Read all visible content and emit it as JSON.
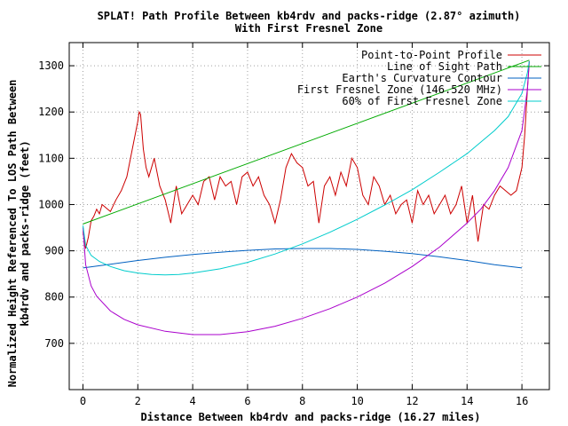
{
  "chart_data": {
    "type": "line",
    "title": "SPLAT! Path Profile Between kb4rdv and packs-ridge (2.87° azimuth)",
    "subtitle": "With First Fresnel Zone",
    "xlabel": "Distance Between kb4rdv and packs-ridge (16.27 miles)",
    "ylabel_lines": [
      "Normalized Height Referenced To LOS Path Between",
      "kb4rdv and packs-ridge (feet)"
    ],
    "xlim": [
      -0.5,
      17.0
    ],
    "ylim": [
      600,
      1350
    ],
    "x_ticks": [
      0,
      2,
      4,
      6,
      8,
      10,
      12,
      14,
      16
    ],
    "y_ticks": [
      700,
      800,
      900,
      1000,
      1100,
      1200,
      1300
    ],
    "grid": true,
    "legend_position": "top-right",
    "series": [
      {
        "name": "Point-to-Point Profile",
        "color": "#cc0000",
        "x": [
          0,
          0.1,
          0.2,
          0.3,
          0.4,
          0.5,
          0.6,
          0.7,
          0.8,
          0.9,
          1.0,
          1.2,
          1.4,
          1.6,
          1.8,
          2.0,
          2.05,
          2.1,
          2.2,
          2.3,
          2.4,
          2.6,
          2.8,
          3.0,
          3.2,
          3.4,
          3.6,
          3.8,
          4.0,
          4.2,
          4.4,
          4.6,
          4.8,
          5.0,
          5.2,
          5.4,
          5.6,
          5.8,
          6.0,
          6.2,
          6.4,
          6.6,
          6.8,
          7.0,
          7.2,
          7.4,
          7.6,
          7.8,
          8.0,
          8.2,
          8.4,
          8.6,
          8.8,
          9.0,
          9.2,
          9.4,
          9.6,
          9.8,
          10.0,
          10.2,
          10.4,
          10.6,
          10.8,
          11.0,
          11.2,
          11.4,
          11.6,
          11.8,
          12.0,
          12.2,
          12.4,
          12.6,
          12.8,
          13.0,
          13.2,
          13.4,
          13.6,
          13.8,
          14.0,
          14.2,
          14.4,
          14.6,
          14.8,
          15.0,
          15.2,
          15.4,
          15.6,
          15.8,
          16.0,
          16.1,
          16.2,
          16.27
        ],
        "values": [
          940,
          905,
          930,
          965,
          975,
          990,
          980,
          1000,
          995,
          990,
          985,
          1010,
          1030,
          1060,
          1120,
          1180,
          1200,
          1195,
          1120,
          1080,
          1060,
          1100,
          1040,
          1010,
          960,
          1040,
          980,
          1000,
          1020,
          1000,
          1050,
          1060,
          1010,
          1060,
          1040,
          1050,
          1000,
          1060,
          1070,
          1040,
          1060,
          1020,
          1000,
          960,
          1010,
          1080,
          1110,
          1090,
          1080,
          1040,
          1050,
          960,
          1040,
          1060,
          1020,
          1070,
          1040,
          1100,
          1080,
          1020,
          1000,
          1060,
          1040,
          1000,
          1020,
          980,
          1000,
          1010,
          960,
          1030,
          1000,
          1020,
          980,
          1000,
          1020,
          980,
          1000,
          1040,
          960,
          1020,
          920,
          1000,
          990,
          1020,
          1040,
          1030,
          1020,
          1030,
          1080,
          1150,
          1250,
          1310
        ]
      },
      {
        "name": "Line of Sight Path",
        "color": "#00aa00",
        "x": [
          0,
          16.27
        ],
        "values": [
          958,
          1312
        ]
      },
      {
        "name": "Earth's Curvature Contour",
        "color": "#0060c0",
        "x": [
          0,
          1,
          2,
          3,
          4,
          5,
          6,
          7,
          8,
          9,
          10,
          11,
          12,
          13,
          14,
          15,
          16
        ],
        "values": [
          863,
          871,
          879,
          886,
          892,
          897,
          901,
          904,
          905,
          905,
          903,
          899,
          894,
          887,
          879,
          870,
          863
        ]
      },
      {
        "name": "First Fresnel Zone (146.520 MHz)",
        "color": "#aa00cc",
        "x": [
          0,
          0.1,
          0.3,
          0.5,
          1,
          1.5,
          2,
          3,
          4,
          5,
          6,
          7,
          8,
          9,
          10,
          11,
          12,
          13,
          14,
          14.5,
          15,
          15.5,
          16,
          16.2,
          16.27
        ],
        "values": [
          950,
          870,
          824,
          802,
          770,
          752,
          740,
          726,
          719,
          719,
          725,
          737,
          754,
          775,
          800,
          830,
          866,
          908,
          960,
          990,
          1030,
          1080,
          1160,
          1250,
          1310
        ]
      },
      {
        "name": "60% of First Fresnel Zone",
        "color": "#00cccc",
        "x": [
          0,
          0.1,
          0.3,
          0.6,
          1,
          1.5,
          2,
          2.5,
          3,
          3.5,
          4,
          5,
          6,
          7,
          8,
          9,
          10,
          11,
          12,
          13,
          14,
          15,
          15.5,
          16,
          16.2,
          16.27
        ],
        "values": [
          955,
          912,
          890,
          877,
          866,
          857,
          852,
          849,
          848,
          849,
          852,
          861,
          875,
          893,
          915,
          940,
          968,
          999,
          1032,
          1070,
          1110,
          1160,
          1190,
          1240,
          1285,
          1310
        ]
      }
    ]
  }
}
